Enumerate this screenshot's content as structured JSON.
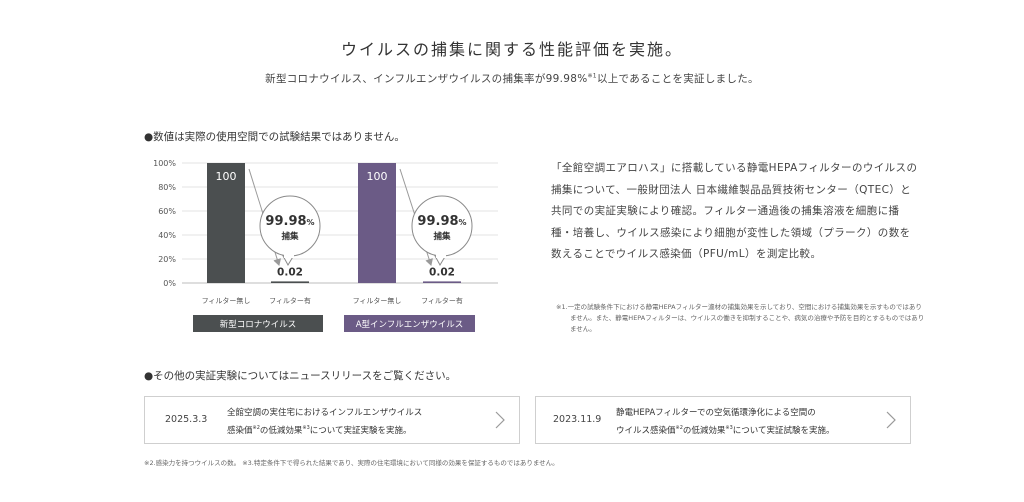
{
  "header": {
    "title": "ウイルスの捕集に関する性能評価を実施。",
    "subtitle_text": "新型コロナウイルス、インフルエンザウイルスの捕集率が99.98%",
    "subtitle_sup": "※1",
    "subtitle_tail": "以上であることを実証しました。"
  },
  "note_heading": "●数値は実際の使用空間での試験結果ではありません。",
  "chart_data": {
    "type": "bar",
    "title": "",
    "ylim": [
      0,
      100
    ],
    "yticks": [
      "100%",
      "80%",
      "60%",
      "40%",
      "20%",
      "0%"
    ],
    "ytick_values": [
      100,
      80,
      60,
      40,
      20,
      0
    ],
    "grid": true,
    "groups": [
      {
        "name": "新型コロナウイルス",
        "color": "#4b4f50",
        "categories": [
          "フィルター無し",
          "フィルター有"
        ],
        "values": [
          100,
          0.02
        ],
        "value_labels": [
          "100",
          "0.02"
        ],
        "capture_rate": "99.98",
        "capture_unit": "%",
        "capture_label": "捕集"
      },
      {
        "name": "A型インフルエンザウイルス",
        "color": "#6b5b86",
        "categories": [
          "フィルター無し",
          "フィルター有"
        ],
        "values": [
          100,
          0.02
        ],
        "value_labels": [
          "100",
          "0.02"
        ],
        "capture_rate": "99.98",
        "capture_unit": "%",
        "capture_label": "捕集"
      }
    ]
  },
  "description": "「全館空調エアロハス」に搭載している静電HEPAフィルターのウイルスの捕集について、一般財団法人 日本繊維製品品質技術センター（QTEC）と共同での実証実験により確認。フィルター通過後の捕集溶液を細胞に播種・培養し、ウイルス感染により細胞が変性した領域（プラーク）の数を数えることでウイルス感染価（PFU/mL）を測定比較。",
  "footnote1": "※1.一定の試験条件下における静電HEPAフィルター濾材の捕集効果を示しており、空間における捕集効果を示すものではありません。また、静電HEPAフィルターは、ウイルスの働きを抑制することや、病気の治療や予防を目的とするものではありません。",
  "news_heading": "●その他の実証実験についてはニュースリリースをご覧ください。",
  "news": [
    {
      "date": "2025.3.3",
      "line1": "全館空調の実住宅におけるインフルエンザウイルス",
      "line2_a": "感染価",
      "line2_sup1": "※2",
      "line2_b": "の低減効果",
      "line2_sup2": "※3",
      "line2_c": "について実証実験を実施。"
    },
    {
      "date": "2023.11.9",
      "line1": "静電HEPAフィルターでの空気循環浄化による空間の",
      "line2_a": "ウイルス感染価",
      "line2_sup1": "※2",
      "line2_b": "の低減効果",
      "line2_sup2": "※3",
      "line2_c": "について実証試験を実施。"
    }
  ],
  "footnote2": "※2.感染力を持つウイルスの数。 ※3.特定条件下で得られた結果であり、実際の住宅環境において同様の効果を保証するものではありません。",
  "icons": {
    "news_arrow": "chevron-right-icon"
  }
}
